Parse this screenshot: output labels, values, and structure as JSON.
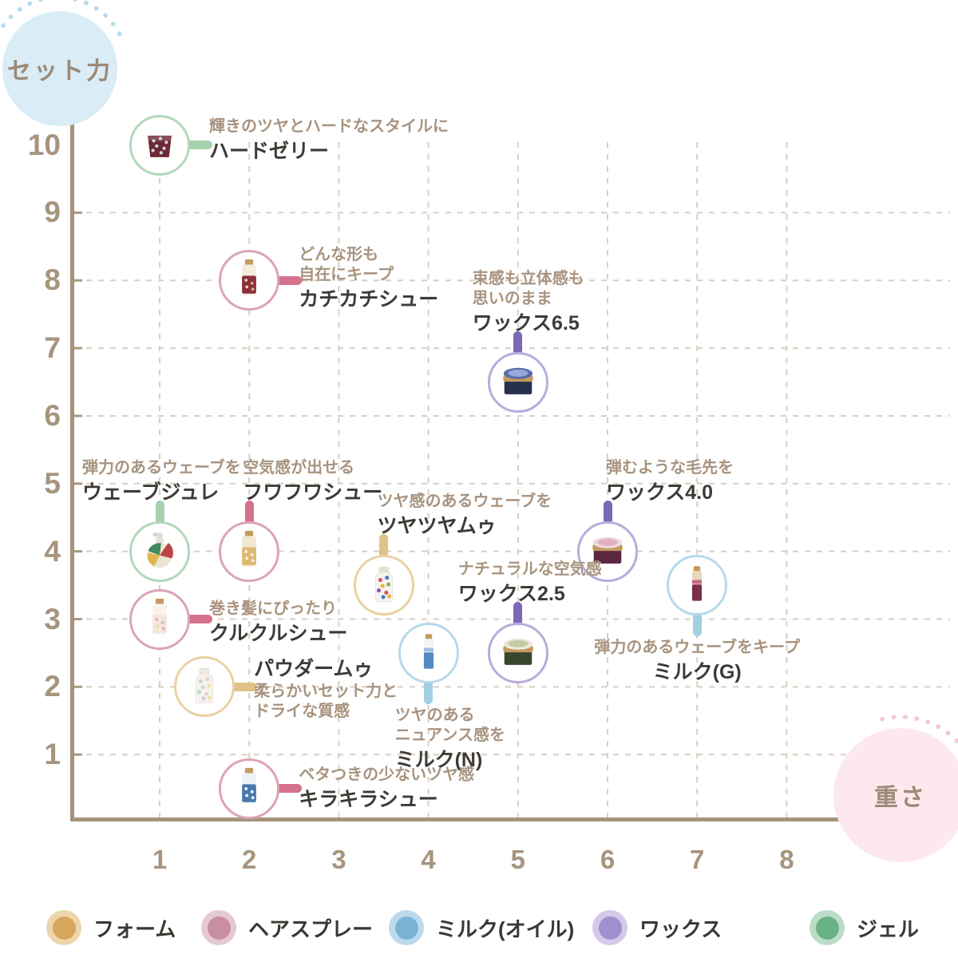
{
  "badges": {
    "y": {
      "label": "セット力",
      "fill": "#daecf5",
      "arc": "#b9dcec",
      "text_color": "#9b8a76"
    },
    "x": {
      "label": "重さ",
      "fill": "#fce8ed",
      "arc": "#f3c7d3",
      "text_color": "#9b8a76"
    }
  },
  "colors": {
    "background": "#ffffff",
    "axis": "#a6937c",
    "grid": "#d8cfc3",
    "tick_text": "#a6947e",
    "desc_text": "#a8937f",
    "name_text": "#3e3a36"
  },
  "chart_data": {
    "type": "scatter",
    "title": "",
    "xlabel": "重さ",
    "ylabel": "セット力",
    "x_ticks": [
      1,
      2,
      3,
      4,
      5,
      6,
      7,
      8
    ],
    "y_ticks": [
      10,
      9,
      8,
      7,
      6,
      5,
      4,
      3,
      2,
      1
    ],
    "x_grid": [
      1,
      2,
      3,
      4,
      5,
      6,
      7,
      8
    ],
    "y_grid": [
      1,
      2,
      3,
      4,
      5,
      6,
      7,
      8,
      9
    ],
    "xlim": [
      0,
      8.8
    ],
    "ylim": [
      0,
      10.9
    ],
    "grid": true,
    "legend_position": "bottom",
    "categories": [
      {
        "id": "foam",
        "label": "フォーム",
        "dot": "#d8a55c",
        "halo": "#edd6ad",
        "ring": "#e9d2a2",
        "connector": "#e2c188"
      },
      {
        "id": "spray",
        "label": "ヘアスプレー",
        "dot": "#c98fa1",
        "halo": "#e5c9d2",
        "ring": "#dca4b4",
        "connector": "#d5718d"
      },
      {
        "id": "milk",
        "label": "ミルク(オイル)",
        "dot": "#7ab3d6",
        "halo": "#bddaec",
        "ring": "#b7d9ea",
        "connector": "#a3cfe3"
      },
      {
        "id": "wax",
        "label": "ワックス",
        "dot": "#a18fce",
        "halo": "#d3c9eb",
        "ring": "#b9abdc",
        "connector": "#7d68b8"
      },
      {
        "id": "gel",
        "label": "ジェル",
        "dot": "#67b283",
        "halo": "#bbddc8",
        "ring": "#b2d8bb",
        "connector": "#a5d2ad"
      }
    ],
    "points": [
      {
        "name": "ハードゼリー",
        "desc": [
          "輝きのツヤとハードなスタイルに"
        ],
        "category": "gel",
        "x": 1,
        "y": 10,
        "label_side": "right",
        "label_dy": -6,
        "icon": "jar",
        "icon_colors": {
          "body": "#6e2733",
          "accent": "#c7d8e6"
        }
      },
      {
        "name": "カチカチシュー",
        "desc": [
          "どんな形も",
          "自在にキープ"
        ],
        "category": "spray",
        "x": 2,
        "y": 8,
        "label_side": "right",
        "label_dy": -2,
        "icon": "can",
        "icon_colors": {
          "body": "#f3ece0",
          "label": "#8c2f3c",
          "cap": "#c49a5e",
          "dots": [
            "#e8d7ab",
            "#d9a8a0"
          ]
        }
      },
      {
        "name": "ワックス6.5",
        "desc": [
          "束感も立体感も",
          "思いのまま"
        ],
        "category": "wax",
        "x": 5,
        "y": 6.5,
        "label_side": "above",
        "label_dx": -57,
        "icon": "tin",
        "icon_colors": {
          "body": "#27304a",
          "lid": "#5a6ca8",
          "cap": "#c49a5e",
          "accent": "#93a9d9"
        }
      },
      {
        "name": "ウェーブジュレ",
        "desc": [
          "弾力のあるウェーブを"
        ],
        "category": "gel",
        "x": 1,
        "y": 4,
        "label_side": "above",
        "label_dx": -97,
        "icon": "pump",
        "icon_colors": {
          "body": "#ece4d2",
          "accent": "#3e8a5c",
          "accent2": "#bb4343",
          "accent3": "#e0b64a"
        }
      },
      {
        "name": "フワフワシュー",
        "desc": [
          "空気感が出せる"
        ],
        "category": "spray",
        "x": 2,
        "y": 4,
        "label_side": "above",
        "label_dx": -8,
        "icon": "can",
        "icon_colors": {
          "body": "#f2e7d0",
          "label": "#dcba74",
          "cap": "#c49a5e",
          "dots": [
            "#f6efdd"
          ]
        }
      },
      {
        "name": "ツヤツヤムゥ",
        "desc": [
          "ツヤ感のあるウェーブを"
        ],
        "category": "foam",
        "x": 3.5,
        "y": 3.5,
        "label_side": "above",
        "label_dx": -8,
        "icon": "mousse",
        "icon_colors": {
          "body": "#f7f4ef",
          "cap": "#e6e1d8",
          "dots": [
            "#d84f5f",
            "#3f7ec2",
            "#e8b93f",
            "#7ab85c",
            "#9a4fb0"
          ]
        }
      },
      {
        "name": "ワックス4.0",
        "desc": [
          "弾むような毛先を"
        ],
        "category": "wax",
        "x": 6,
        "y": 4,
        "label_side": "above",
        "label_dx": -2,
        "icon": "tin",
        "icon_colors": {
          "body": "#5c2540",
          "lid": "#eed9df",
          "cap": "#c49a5e",
          "accent": "#e2afc0"
        }
      },
      {
        "name": "ミルク(G)",
        "desc": [
          "弾力のあるウェーブをキープ"
        ],
        "category": "milk",
        "x": 7,
        "y": 3.5,
        "label_side": "below",
        "label_align": "center",
        "icon": "slim",
        "icon_colors": {
          "body": "#ead8bb",
          "label": "#7c2f4d",
          "cap": "#c49a5e",
          "accent": "#c46a86"
        }
      },
      {
        "name": "クルクルシュー",
        "desc": [
          "巻き髪にぴったり"
        ],
        "category": "spray",
        "x": 1,
        "y": 3,
        "label_side": "right",
        "label_dy": 4,
        "icon": "can",
        "icon_colors": {
          "body": "#f8f3eb",
          "label": "#f3e6da",
          "cap": "#c49a5e",
          "dots": [
            "#e9a9b9",
            "#a9ccb9",
            "#f0d9a6"
          ]
        }
      },
      {
        "name": "ワックス2.5",
        "desc": [
          "ナチュラルな空気感"
        ],
        "category": "wax",
        "x": 5,
        "y": 2.5,
        "label_side": "above",
        "label_dx": -75,
        "icon": "tin",
        "icon_colors": {
          "body": "#39462e",
          "lid": "#ebe9da",
          "cap": "#c49a5e",
          "accent": "#c2cda4"
        }
      },
      {
        "name": "ミルク(N)",
        "desc": [
          "ツヤのある",
          "ニュアンス感を"
        ],
        "category": "milk",
        "x": 4,
        "y": 2.5,
        "label_side": "below",
        "label_dx": -42,
        "label_align": "left",
        "icon": "slim",
        "icon_colors": {
          "body": "#f3f5f7",
          "label": "#5289c4",
          "cap": "#c49a5e",
          "accent": "#9ec1e4"
        }
      },
      {
        "name": "パウダームゥ",
        "desc": [
          "柔らかいセット力と",
          "ドライな質感"
        ],
        "category": "foam",
        "x": 1.5,
        "y": 2,
        "label_side": "right",
        "label_dy": 2,
        "name_first": true,
        "icon": "mousse",
        "icon_colors": {
          "body": "#f6f3ec",
          "cap": "#efece4",
          "dots": [
            "#bcd8ca",
            "#eeccd8",
            "#d6c9e7",
            "#f0dfae"
          ]
        }
      },
      {
        "name": "キラキラシュー",
        "desc": [
          "ベタつきの少ないツヤ感"
        ],
        "category": "spray",
        "x": 2,
        "y": 0.5,
        "label_side": "right",
        "icon": "can",
        "icon_colors": {
          "body": "#ecf3f8",
          "label": "#4a78ac",
          "cap": "#c49a5e",
          "dots": [
            "#ffffff"
          ]
        }
      }
    ]
  }
}
